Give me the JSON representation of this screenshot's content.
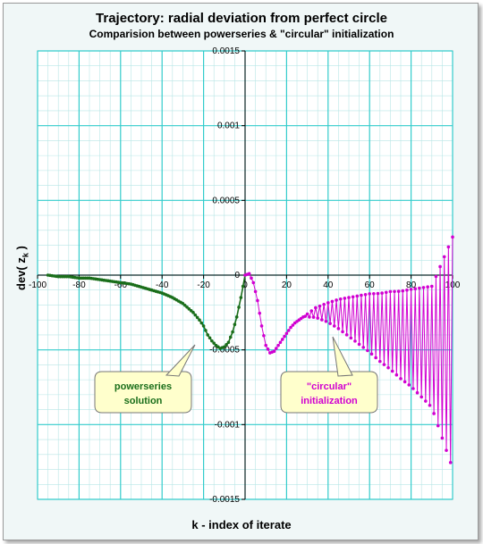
{
  "chart_data": {
    "type": "line",
    "title": "Trajectory: radial deviation from perfect circle",
    "subtitle": "Comparision between powerseries & \"circular\" initialization",
    "xlabel": "k - index of iterate",
    "ylabel": "dev( z",
    "ylabel_sub": "k",
    "ylabel_close": " )",
    "xlim": [
      -100,
      100
    ],
    "ylim": [
      -0.0015,
      0.0015
    ],
    "x_ticks": [
      -100,
      -80,
      -60,
      -40,
      -20,
      0,
      20,
      40,
      60,
      80,
      100
    ],
    "x_tick_labels": [
      "-100",
      "-80",
      "-60",
      "-40",
      "-20",
      "0",
      "20",
      "40",
      "60",
      "80",
      "100"
    ],
    "y_ticks": [
      -0.0015,
      -0.001,
      -0.0005,
      0,
      0.0005,
      0.001,
      0.0015
    ],
    "y_tick_labels": [
      "-0.0015",
      "-0.001",
      "-0.0005",
      "0",
      "0.0005",
      "0.001",
      "0.0015"
    ],
    "grid": true,
    "colors": {
      "powerseries": "#1a6e1a",
      "circular": "#d100d1",
      "grid_major": "#33cccc",
      "grid_minor": "#b8e6e6"
    },
    "series": [
      {
        "name": "powerseries solution",
        "x": [
          -95,
          -90,
          -85,
          -80,
          -75,
          -70,
          -65,
          -60,
          -55,
          -50,
          -45,
          -40,
          -35,
          -30,
          -25,
          -22,
          -20,
          -18,
          -16,
          -14,
          -12,
          -10,
          -8,
          -6,
          -4,
          -2,
          0
        ],
        "y": [
          0.0,
          -1e-05,
          -1e-05,
          -2e-05,
          -2e-05,
          -3e-05,
          -4e-05,
          -5e-05,
          -6e-05,
          -8e-05,
          -0.0001,
          -0.00012,
          -0.00015,
          -0.00019,
          -0.00025,
          -0.0003,
          -0.00034,
          -0.0004,
          -0.00044,
          -0.00047,
          -0.00049,
          -0.00048,
          -0.00045,
          -0.00038,
          -0.00028,
          -0.00015,
          0.0
        ]
      },
      {
        "name": "\"circular\" initialization",
        "x": [
          0,
          2,
          4,
          6,
          8,
          10,
          12,
          14,
          16,
          18,
          20,
          22,
          24,
          26,
          28,
          30,
          32,
          34,
          36,
          38,
          40,
          45,
          50,
          55,
          60,
          65,
          70,
          75,
          80,
          85,
          90,
          95,
          100
        ],
        "y": [
          0.0,
          1e-05,
          -5e-05,
          -0.00017,
          -0.00034,
          -0.00047,
          -0.00052,
          -0.00051,
          -0.00047,
          -0.00043,
          -0.00039,
          -0.00035,
          -0.00032,
          -0.0003,
          -0.00028,
          -0.00027,
          -0.00026,
          -0.00025,
          -0.00025,
          -0.00025,
          -0.00025,
          -0.00026,
          -0.00028,
          -0.0003,
          -0.00032,
          -0.00035,
          -0.00037,
          -0.0004,
          -0.00042,
          -0.00045,
          -0.00048,
          -0.0005,
          -0.00052
        ],
        "oscillation_amplitude": {
          "k": [
            30,
            40,
            50,
            60,
            70,
            80,
            90,
            100
          ],
          "amp": [
            2e-05,
            0.00013,
            0.00026,
            0.00039,
            0.00052,
            0.00065,
            0.00081,
            0.00155
          ]
        }
      }
    ],
    "annotations": [
      {
        "text_lines": [
          "powerseries",
          "solution"
        ],
        "color": "#1a6e1a",
        "fill": "#ffffcc"
      },
      {
        "text_lines": [
          "\"circular\"",
          "initialization"
        ],
        "color": "#d100d1",
        "fill": "#ffffcc"
      }
    ]
  }
}
